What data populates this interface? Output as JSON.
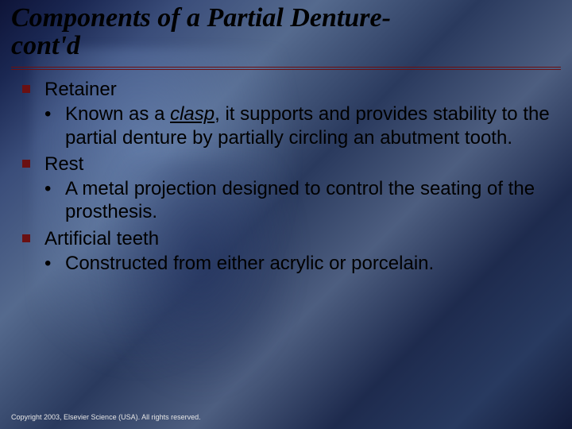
{
  "title_line1": "Components of a Partial Denture-",
  "title_line2": "cont'd",
  "colors": {
    "title_text": "#000000",
    "rule": "#6a1012",
    "square_bullet": "#6a1012",
    "body_text": "#000000",
    "footer_text": "#e6e6e6",
    "background_stops": [
      "#0e1438",
      "#1a2752",
      "#3a4d7a",
      "#556a8e",
      "#2a3a5e",
      "#4d5e80",
      "#1e2b4e",
      "#283a60",
      "#121b3a"
    ]
  },
  "typography": {
    "title_family": "Times New Roman",
    "title_style": "italic bold",
    "title_size_pt": 26,
    "body_family": "Verdana",
    "body_size_pt": 18,
    "footer_size_pt": 7
  },
  "bullets": {
    "items": [
      {
        "label": "Retainer",
        "sub_pre": "Known as a ",
        "sub_em": "clasp",
        "sub_post": ", it supports and provides stability to the partial denture by partially circling an abutment tooth."
      },
      {
        "label": "Rest",
        "sub": "A metal projection designed to control the seating of the prosthesis."
      },
      {
        "label": "Artificial teeth",
        "sub": "Constructed from either acrylic or porcelain."
      }
    ]
  },
  "footer": "Copyright 2003, Elsevier Science (USA). All rights reserved."
}
